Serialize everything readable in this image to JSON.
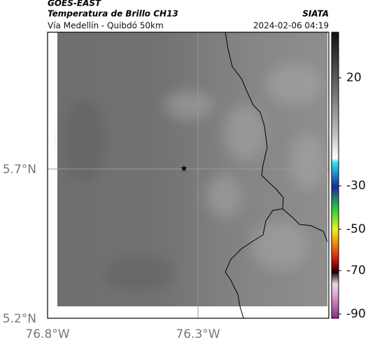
{
  "header": {
    "source": "GOES-EAST",
    "title": "Temperatura de Brillo CH13",
    "subtitle": "Vía Medellín - Quibdó 50km",
    "org": "SIATA",
    "datetime": "2024-02-06 04:19"
  },
  "map": {
    "lat_labels": [
      "5.7°N",
      "5.2°N"
    ],
    "lon_labels": [
      "76.8°W",
      "76.3°W"
    ]
  },
  "colorbar": {
    "ticks": [
      20,
      -30,
      -50,
      -70,
      -90
    ]
  }
}
